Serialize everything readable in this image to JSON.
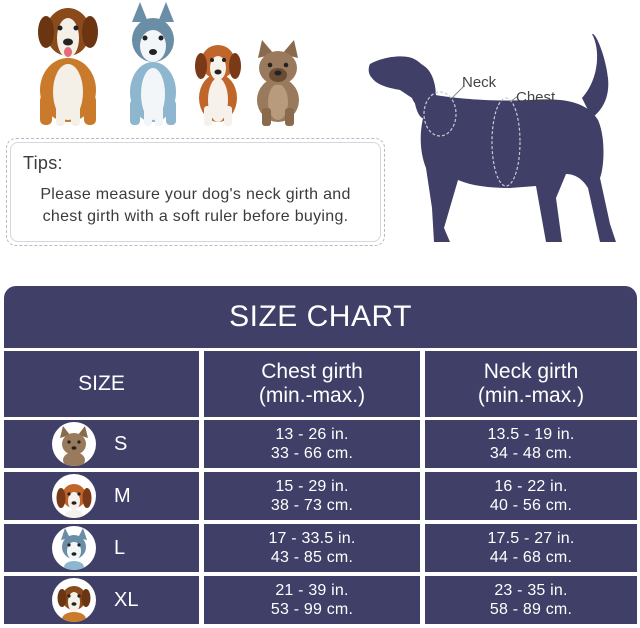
{
  "tips": {
    "title": "Tips:",
    "text": "Please measure your dog's neck girth and chest girth with a soft ruler before buying."
  },
  "diagram": {
    "neck_label": "Neck",
    "chest_label": "Chest"
  },
  "chart": {
    "title": "SIZE CHART",
    "headers": {
      "size": "SIZE",
      "chest_line1": "Chest girth",
      "chest_line2": "(min.-max.)",
      "neck_line1": "Neck girth",
      "neck_line2": "(min.-max.)"
    },
    "rows": [
      {
        "size": "S",
        "chest_in": "13 - 26 in.",
        "chest_cm": "33 - 66 cm.",
        "neck_in": "13.5 - 19 in.",
        "neck_cm": "34 - 48 cm."
      },
      {
        "size": "M",
        "chest_in": "15 - 29 in.",
        "chest_cm": "38 - 73 cm.",
        "neck_in": "16 - 22 in.",
        "neck_cm": "40 - 56 cm."
      },
      {
        "size": "L",
        "chest_in": "17 - 33.5 in.",
        "chest_cm": "43 - 85 cm.",
        "neck_in": "17.5 - 27 in.",
        "neck_cm": "44 - 68 cm."
      },
      {
        "size": "XL",
        "chest_in": "21 - 39 in.",
        "chest_cm": "53 - 99 cm.",
        "neck_in": "23 - 35 in.",
        "neck_cm": "58 - 89 cm."
      }
    ]
  },
  "colors": {
    "chart_navy": "#3f3f68",
    "dog_silhouette": "#3f3f68",
    "text_gray": "#3b3b3b"
  }
}
